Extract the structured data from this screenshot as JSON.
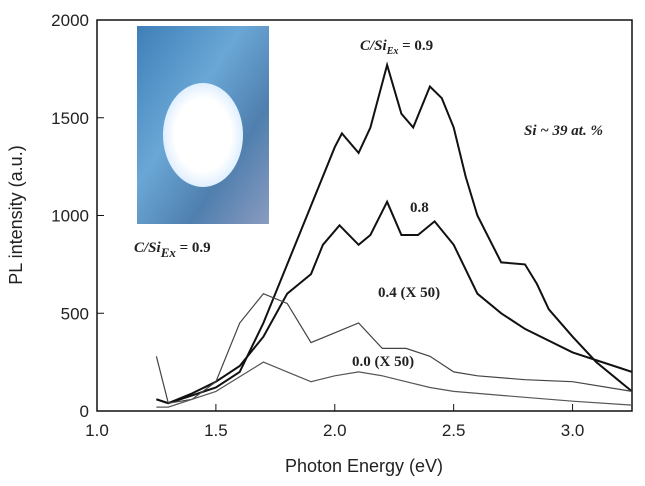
{
  "chart_data": {
    "type": "line",
    "x_label": "Photon Energy (eV)",
    "y_label": "PL intensity (a.u.)",
    "xlim": [
      1.0,
      3.25
    ],
    "ylim": [
      0,
      2000
    ],
    "xticks": [
      {
        "value": 1,
        "label": "1.0"
      },
      {
        "value": 1.5,
        "label": "1.5"
      },
      {
        "value": 2,
        "label": "2.0"
      },
      {
        "value": 2.5,
        "label": "2.5"
      },
      {
        "value": 3,
        "label": "3.0"
      }
    ],
    "yticks": [
      0,
      500,
      1000,
      1500,
      2000
    ],
    "annotation": "Si ~ 39 at. %",
    "series": [
      {
        "name_main": "C/Si",
        "name_sub": "Ex",
        "name_tail": " = 0.9",
        "color": "#111",
        "x": [
          1.25,
          1.3,
          1.4,
          1.5,
          1.6,
          1.7,
          1.8,
          1.9,
          2.0,
          2.03,
          2.1,
          2.15,
          2.22,
          2.28,
          2.33,
          2.4,
          2.45,
          2.5,
          2.55,
          2.6,
          2.7,
          2.8,
          2.85,
          2.9,
          3.0,
          3.1,
          3.2,
          3.25
        ],
        "values": [
          60,
          40,
          80,
          120,
          200,
          450,
          750,
          1050,
          1350,
          1420,
          1320,
          1450,
          1770,
          1520,
          1450,
          1660,
          1600,
          1450,
          1200,
          1000,
          760,
          750,
          650,
          520,
          380,
          250,
          150,
          100
        ]
      },
      {
        "name": "0.8",
        "color": "#111",
        "x": [
          1.25,
          1.3,
          1.4,
          1.5,
          1.6,
          1.7,
          1.8,
          1.85,
          1.9,
          1.95,
          2.02,
          2.1,
          2.15,
          2.22,
          2.28,
          2.35,
          2.42,
          2.5,
          2.6,
          2.7,
          2.8,
          3.0,
          3.2,
          3.25
        ],
        "values": [
          60,
          40,
          90,
          150,
          230,
          380,
          600,
          650,
          700,
          850,
          950,
          850,
          900,
          1070,
          900,
          900,
          970,
          850,
          600,
          500,
          420,
          300,
          220,
          200
        ]
      },
      {
        "name": "0.4 (X 50)",
        "color": "#444",
        "x": [
          1.25,
          1.3,
          1.4,
          1.5,
          1.6,
          1.7,
          1.8,
          1.9,
          2.0,
          2.1,
          2.2,
          2.3,
          2.4,
          2.5,
          2.6,
          2.8,
          3.0,
          3.25
        ],
        "values": [
          280,
          40,
          60,
          150,
          450,
          600,
          550,
          350,
          400,
          450,
          320,
          320,
          280,
          200,
          180,
          160,
          150,
          100
        ]
      },
      {
        "name": "0.0 (X 50)",
        "color": "#555",
        "x": [
          1.25,
          1.3,
          1.5,
          1.7,
          1.8,
          1.9,
          2.0,
          2.1,
          2.2,
          2.3,
          2.4,
          2.5,
          2.7,
          3.0,
          3.25
        ],
        "values": [
          20,
          20,
          100,
          250,
          200,
          150,
          180,
          200,
          180,
          150,
          120,
          100,
          80,
          50,
          30
        ]
      }
    ],
    "inset": {
      "label_main": "C/Si",
      "label_sub": "Ex",
      "label_tail": " = 0.9"
    }
  }
}
